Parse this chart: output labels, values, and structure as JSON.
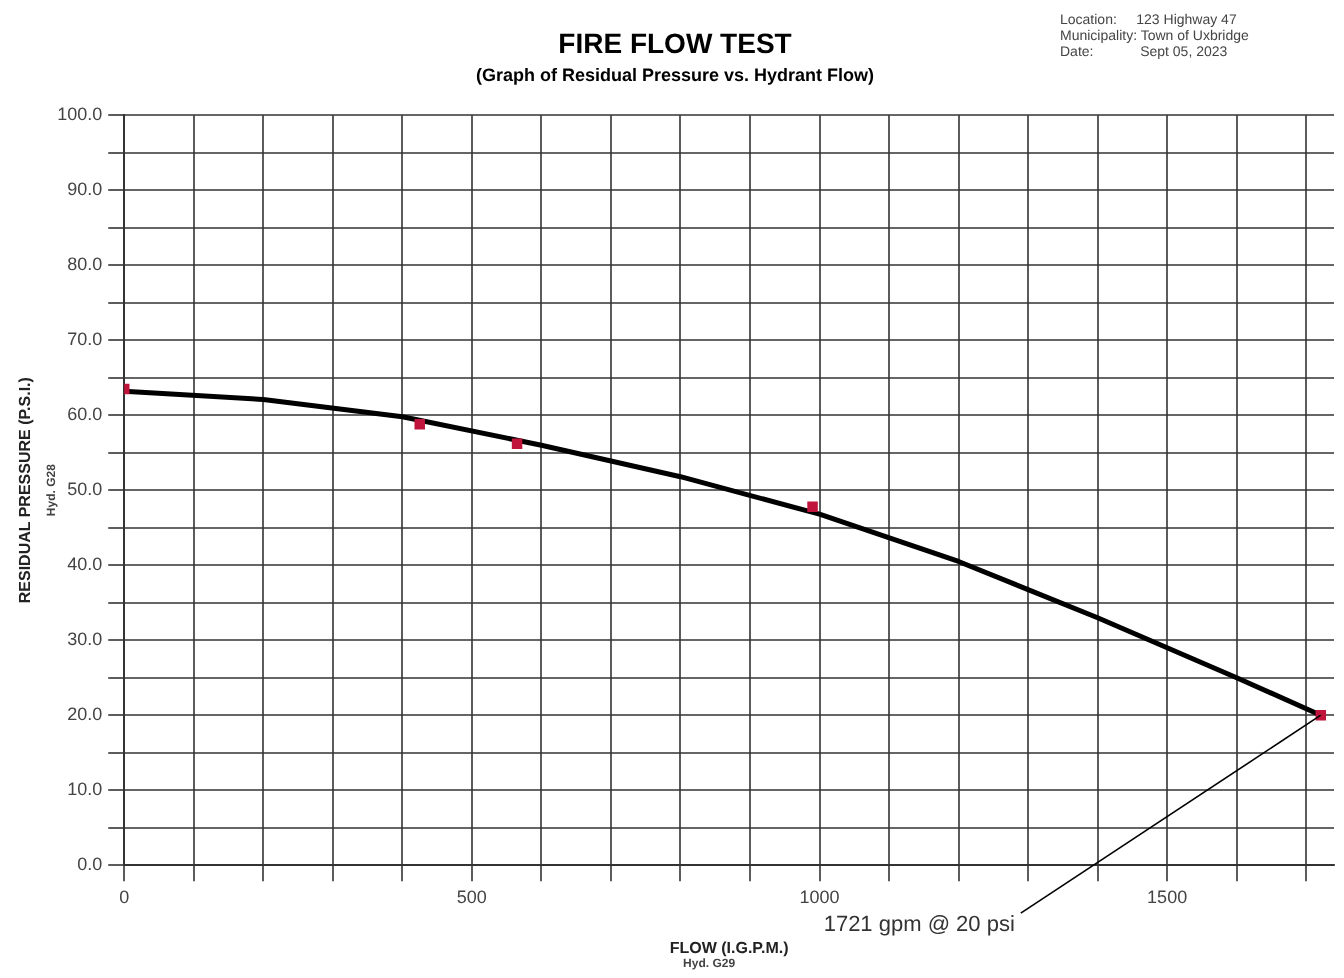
{
  "chart_data": {
    "type": "scatter",
    "title": "FIRE FLOW TEST",
    "subtitle": "(Graph of Residual Pressure vs. Hydrant Flow)",
    "xlabel": "FLOW (I.G.P.M.)",
    "ylabel": "RESIDUAL PRESSURE (P.S.I.)",
    "annotations": [
      "Location:     123 Highway 47",
      "Municipality: Town of Uxbridge",
      "Date:            Sept 05, 2023",
      "Hyd. G28",
      "Hyd. G29",
      {
        "text": "1721 gpm @ 20 psi",
        "x": 1721,
        "y": 20
      }
    ],
    "series": [
      {
        "type": "scatter",
        "color": "#c0143c",
        "marker": "square",
        "x": [
          0,
          425,
          565,
          990,
          1721
        ],
        "values": [
          63.5,
          58.8,
          56.2,
          47.8,
          20
        ]
      },
      {
        "type": "line",
        "color": "#000000",
        "marker": "none",
        "line_style": "solid",
        "x": [
          0,
          200,
          400,
          600,
          800,
          1000,
          1200,
          1400,
          1600,
          1721
        ],
        "values": [
          63.2,
          62.1,
          59.8,
          56,
          51.8,
          46.8,
          40.5,
          33,
          25,
          20
        ]
      }
    ],
    "xlim": [
      0,
      1740
    ],
    "xticks": [
      0,
      {
        "value": 100,
        "label": null
      },
      {
        "value": 200,
        "label": null
      },
      {
        "value": 300,
        "label": null
      },
      {
        "value": 400,
        "label": null
      },
      500,
      {
        "value": 600,
        "label": null
      },
      {
        "value": 700,
        "label": null
      },
      {
        "value": 800,
        "label": null
      },
      {
        "value": 900,
        "label": null
      },
      1000,
      {
        "value": 1100,
        "label": null
      },
      {
        "value": 1200,
        "label": null
      },
      {
        "value": 1300,
        "label": null
      },
      {
        "value": 1400,
        "label": null
      },
      1500,
      {
        "value": 1600,
        "label": null
      },
      {
        "value": 1700,
        "label": null
      }
    ],
    "ylim": [
      0,
      100
    ],
    "yticks": [
      {
        "value": 0,
        "label": "0.0"
      },
      {
        "value": 5,
        "label": null
      },
      {
        "value": 10,
        "label": "10.0"
      },
      {
        "value": 15,
        "label": null
      },
      {
        "value": 20,
        "label": "20.0"
      },
      {
        "value": 25,
        "label": null
      },
      {
        "value": 30,
        "label": "30.0"
      },
      {
        "value": 35,
        "label": null
      },
      {
        "value": 40,
        "label": "40.0"
      },
      {
        "value": 45,
        "label": null
      },
      {
        "value": 50,
        "label": "50.0"
      },
      {
        "value": 55,
        "label": null
      },
      {
        "value": 60,
        "label": "60.0"
      },
      {
        "value": 65,
        "label": null
      },
      {
        "value": 70,
        "label": "70.0"
      },
      {
        "value": 75,
        "label": null
      },
      {
        "value": 80,
        "label": "80.0"
      },
      {
        "value": 85,
        "label": null
      },
      {
        "value": 90,
        "label": "90.0"
      },
      {
        "value": 95,
        "label": null
      },
      {
        "value": 100,
        "label": "100.0"
      }
    ],
    "grid": true,
    "legend": false
  }
}
